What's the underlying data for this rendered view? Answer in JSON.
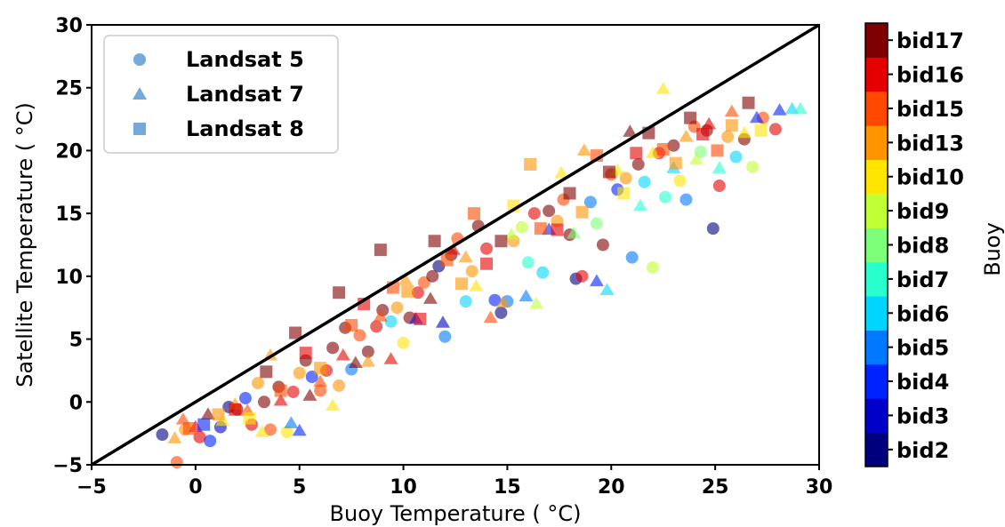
{
  "chart_data": {
    "type": "scatter",
    "title": "",
    "xlabel": "Buoy Temperature ( $^\\circ$C)",
    "xlabel_display": "Buoy Temperature ( °C)",
    "ylabel_display": "Satellite Temperature ( °C)",
    "xlim": [
      -5,
      30
    ],
    "ylim": [
      -5,
      30
    ],
    "xticks": [
      "−5",
      "0",
      "5",
      "10",
      "15",
      "20",
      "25",
      "30"
    ],
    "yticks": [
      "−5",
      "0",
      "5",
      "10",
      "15",
      "20",
      "25",
      "30"
    ],
    "grid": false,
    "reference_line": {
      "x": [
        -5,
        30
      ],
      "y": [
        -5,
        30
      ],
      "color": "#000000"
    },
    "legend": {
      "placement": "top-left",
      "entries": [
        {
          "name": "Landsat 5",
          "marker": "circle"
        },
        {
          "name": "Landsat 7",
          "marker": "triangle"
        },
        {
          "name": "Landsat 8",
          "marker": "square"
        }
      ],
      "marker_color": "#5b9bd5"
    },
    "colorbar": {
      "label": "Buoy",
      "categories": [
        "bid2",
        "bid3",
        "bid4",
        "bid5",
        "bid6",
        "bid7",
        "bid8",
        "bid9",
        "bid10",
        "bid13",
        "bid15",
        "bid16",
        "bid17"
      ],
      "colors": [
        "#00007f",
        "#0000c8",
        "#0022ff",
        "#0078ff",
        "#00d5ff",
        "#29ffcd",
        "#7dff7a",
        "#c1ff36",
        "#ffe500",
        "#ff9400",
        "#ff4800",
        "#e50000",
        "#7f0000"
      ]
    },
    "series": [
      {
        "name": "Landsat 5",
        "marker": "circle",
        "points": [
          [
            -1.6,
            -2.6,
            2
          ],
          [
            -0.9,
            -4.8,
            15
          ],
          [
            -0.5,
            -2.2,
            13
          ],
          [
            0.2,
            -2.8,
            16
          ],
          [
            0.7,
            -3.1,
            4
          ],
          [
            1.2,
            -2.0,
            3
          ],
          [
            1.6,
            -0.4,
            2
          ],
          [
            2.0,
            -0.6,
            17
          ],
          [
            2.4,
            0.3,
            4
          ],
          [
            2.7,
            -1.8,
            16
          ],
          [
            3.0,
            1.5,
            13
          ],
          [
            3.3,
            0.0,
            17
          ],
          [
            3.6,
            -2.2,
            15
          ],
          [
            4.0,
            1.2,
            17
          ],
          [
            4.4,
            -2.4,
            10
          ],
          [
            4.7,
            0.8,
            16
          ],
          [
            5.0,
            2.3,
            13
          ],
          [
            5.3,
            3.3,
            17
          ],
          [
            5.6,
            2.0,
            4
          ],
          [
            6.0,
            0.9,
            15
          ],
          [
            6.3,
            2.5,
            16
          ],
          [
            6.6,
            4.3,
            17
          ],
          [
            6.9,
            1.3,
            13
          ],
          [
            7.2,
            5.9,
            17
          ],
          [
            7.5,
            2.6,
            5
          ],
          [
            7.9,
            5.3,
            15
          ],
          [
            8.3,
            4.0,
            17
          ],
          [
            8.7,
            6.0,
            16
          ],
          [
            9.0,
            7.3,
            17
          ],
          [
            9.4,
            6.4,
            6
          ],
          [
            9.7,
            7.5,
            13
          ],
          [
            10.0,
            4.7,
            10
          ],
          [
            10.3,
            6.7,
            17
          ],
          [
            10.7,
            8.7,
            16
          ],
          [
            11.0,
            9.5,
            15
          ],
          [
            11.4,
            10.0,
            17
          ],
          [
            11.7,
            10.8,
            2
          ],
          [
            12.0,
            5.2,
            5
          ],
          [
            12.3,
            11.7,
            17
          ],
          [
            12.6,
            13.0,
            15
          ],
          [
            13.0,
            8.0,
            6
          ],
          [
            13.3,
            10.4,
            13
          ],
          [
            13.6,
            14.0,
            17
          ],
          [
            14.0,
            12.2,
            16
          ],
          [
            14.4,
            8.1,
            4
          ],
          [
            14.7,
            7.1,
            2
          ],
          [
            15.0,
            8.0,
            5
          ],
          [
            15.3,
            12.8,
            13
          ],
          [
            15.7,
            13.9,
            9
          ],
          [
            16.0,
            11.1,
            7
          ],
          [
            16.3,
            15.0,
            16
          ],
          [
            16.7,
            10.3,
            6
          ],
          [
            17.0,
            15.2,
            17
          ],
          [
            17.4,
            14.4,
            13
          ],
          [
            17.7,
            16.1,
            15
          ],
          [
            18.0,
            13.3,
            17
          ],
          [
            18.3,
            9.8,
            2
          ],
          [
            18.6,
            10.0,
            16
          ],
          [
            19.0,
            15.9,
            5
          ],
          [
            19.3,
            14.2,
            8
          ],
          [
            19.6,
            12.5,
            17
          ],
          [
            20.0,
            18.1,
            15
          ],
          [
            20.3,
            16.9,
            4
          ],
          [
            20.7,
            17.8,
            13
          ],
          [
            21.0,
            11.5,
            5
          ],
          [
            21.3,
            18.9,
            17
          ],
          [
            21.6,
            17.5,
            6
          ],
          [
            22.0,
            10.7,
            9
          ],
          [
            22.3,
            19.8,
            16
          ],
          [
            22.6,
            16.3,
            7
          ],
          [
            23.0,
            20.4,
            17
          ],
          [
            23.3,
            17.6,
            10
          ],
          [
            23.6,
            16.1,
            5
          ],
          [
            24.0,
            21.9,
            15
          ],
          [
            24.3,
            19.9,
            8
          ],
          [
            24.6,
            21.6,
            17
          ],
          [
            24.9,
            13.8,
            2
          ],
          [
            25.2,
            17.2,
            16
          ],
          [
            25.6,
            21.1,
            13
          ],
          [
            26.0,
            19.5,
            6
          ],
          [
            26.4,
            20.9,
            17
          ],
          [
            26.8,
            18.7,
            9
          ],
          [
            27.3,
            22.6,
            15
          ],
          [
            27.9,
            21.7,
            16
          ]
        ]
      },
      {
        "name": "Landsat 7",
        "marker": "triangle",
        "points": [
          [
            -1.0,
            -2.9,
            13
          ],
          [
            -0.6,
            -1.4,
            15
          ],
          [
            0.0,
            -2.0,
            16
          ],
          [
            0.6,
            -1.0,
            17
          ],
          [
            1.3,
            -1.5,
            10
          ],
          [
            1.9,
            -0.2,
            13
          ],
          [
            2.5,
            -0.7,
            15
          ],
          [
            3.2,
            -2.4,
            10
          ],
          [
            3.6,
            3.7,
            13
          ],
          [
            4.1,
            0.1,
            16
          ],
          [
            4.6,
            -1.7,
            5
          ],
          [
            5.0,
            -2.3,
            4
          ],
          [
            5.5,
            0.5,
            17
          ],
          [
            6.0,
            1.6,
            15
          ],
          [
            6.6,
            -0.3,
            10
          ],
          [
            7.1,
            3.7,
            16
          ],
          [
            7.7,
            3.1,
            17
          ],
          [
            8.3,
            3.2,
            13
          ],
          [
            8.9,
            6.8,
            15
          ],
          [
            9.4,
            3.4,
            16
          ],
          [
            10.1,
            9.7,
            13
          ],
          [
            10.6,
            6.6,
            4
          ],
          [
            11.3,
            8.2,
            17
          ],
          [
            11.9,
            6.3,
            3
          ],
          [
            12.4,
            12.1,
            16
          ],
          [
            13.0,
            11.5,
            13
          ],
          [
            13.5,
            9.2,
            10
          ],
          [
            14.2,
            6.7,
            15
          ],
          [
            14.8,
            7.9,
            13
          ],
          [
            15.2,
            13.3,
            9
          ],
          [
            15.9,
            8.4,
            5
          ],
          [
            16.4,
            7.8,
            9
          ],
          [
            17.0,
            13.7,
            4
          ],
          [
            17.6,
            18.2,
            10
          ],
          [
            18.2,
            13.4,
            8
          ],
          [
            18.7,
            20.0,
            13
          ],
          [
            19.3,
            9.6,
            4
          ],
          [
            19.8,
            8.9,
            6
          ],
          [
            20.3,
            18.4,
            10
          ],
          [
            20.9,
            21.5,
            17
          ],
          [
            21.4,
            15.6,
            7
          ],
          [
            22.0,
            19.8,
            10
          ],
          [
            22.5,
            24.9,
            10
          ],
          [
            23.0,
            18.6,
            6
          ],
          [
            23.6,
            21.1,
            13
          ],
          [
            24.1,
            19.3,
            9
          ],
          [
            24.7,
            22.1,
            16
          ],
          [
            25.2,
            18.6,
            7
          ],
          [
            25.8,
            23.1,
            15
          ],
          [
            26.4,
            21.4,
            10
          ],
          [
            27.0,
            22.6,
            4
          ],
          [
            28.1,
            23.2,
            4
          ],
          [
            28.7,
            23.3,
            6
          ],
          [
            29.1,
            23.3,
            7
          ]
        ]
      },
      {
        "name": "Landsat 8",
        "marker": "square",
        "points": [
          [
            -0.3,
            -2.1,
            15
          ],
          [
            0.4,
            -1.8,
            4
          ],
          [
            1.1,
            -1.0,
            13
          ],
          [
            1.9,
            -0.6,
            16
          ],
          [
            2.6,
            -1.3,
            10
          ],
          [
            3.4,
            2.4,
            17
          ],
          [
            4.1,
            0.9,
            15
          ],
          [
            4.8,
            5.5,
            17
          ],
          [
            5.3,
            3.9,
            16
          ],
          [
            6.0,
            2.7,
            13
          ],
          [
            6.9,
            8.7,
            17
          ],
          [
            7.5,
            6.1,
            15
          ],
          [
            8.1,
            7.8,
            16
          ],
          [
            8.9,
            12.1,
            17
          ],
          [
            9.5,
            9.1,
            15
          ],
          [
            10.2,
            8.8,
            13
          ],
          [
            10.8,
            6.6,
            16
          ],
          [
            11.5,
            12.8,
            17
          ],
          [
            12.1,
            11.3,
            15
          ],
          [
            12.8,
            9.4,
            13
          ],
          [
            13.4,
            15.0,
            15
          ],
          [
            14.0,
            11.0,
            16
          ],
          [
            14.7,
            12.8,
            17
          ],
          [
            15.3,
            15.6,
            10
          ],
          [
            16.1,
            18.9,
            13
          ],
          [
            16.6,
            13.8,
            15
          ],
          [
            17.4,
            13.7,
            16
          ],
          [
            18.0,
            16.6,
            17
          ],
          [
            18.6,
            15.1,
            13
          ],
          [
            19.3,
            19.6,
            15
          ],
          [
            19.9,
            18.3,
            17
          ],
          [
            20.6,
            16.6,
            10
          ],
          [
            21.2,
            19.8,
            16
          ],
          [
            21.8,
            21.4,
            17
          ],
          [
            22.5,
            20.1,
            15
          ],
          [
            23.1,
            19.0,
            13
          ],
          [
            23.8,
            22.6,
            17
          ],
          [
            24.4,
            21.3,
            16
          ],
          [
            25.1,
            20.0,
            15
          ],
          [
            25.8,
            22.0,
            13
          ],
          [
            26.6,
            23.8,
            17
          ],
          [
            27.2,
            21.6,
            10
          ]
        ]
      }
    ]
  }
}
